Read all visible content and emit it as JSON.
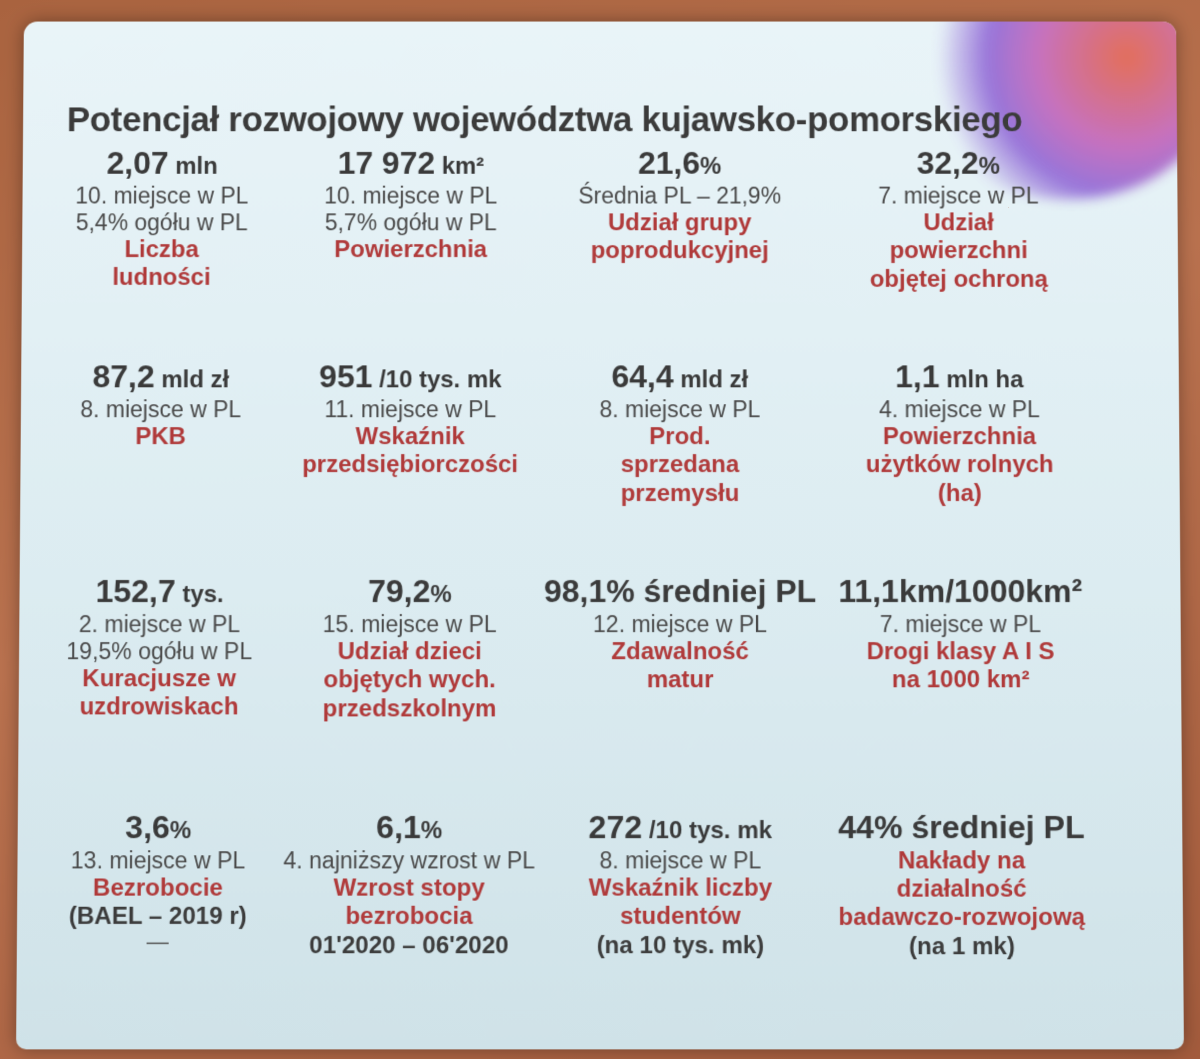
{
  "title": "Potencjał rozwojowy województwa kujawsko-pomorskiego",
  "cells": [
    {
      "value": "2,07",
      "unit": "mln",
      "lines": [
        "10. miejsce w PL",
        "5,4% ogółu w PL"
      ],
      "label": [
        "Liczba",
        "ludności"
      ]
    },
    {
      "value": "17 972",
      "unit": "km²",
      "lines": [
        "10. miejsce w PL",
        "5,7% ogółu w PL"
      ],
      "label": [
        "Powierzchnia"
      ]
    },
    {
      "value": "21,6",
      "unit": "%",
      "lines": [
        "Średnia PL – 21,9%"
      ],
      "label": [
        "Udział grupy",
        "poprodukcyjnej"
      ]
    },
    {
      "value": "32,2",
      "unit": "%",
      "lines": [
        "7. miejsce w PL"
      ],
      "label": [
        "Udział",
        "powierzchni",
        "objętej ochroną"
      ]
    },
    {
      "value": "87,2",
      "unit": "mld zł",
      "lines": [
        "8. miejsce w PL"
      ],
      "label": [
        "PKB"
      ]
    },
    {
      "value": "951",
      "unit": "/10 tys. mk",
      "lines": [
        "11. miejsce w PL"
      ],
      "label": [
        "Wskaźnik",
        "przedsiębiorczości"
      ]
    },
    {
      "value": "64,4",
      "unit": "mld zł",
      "lines": [
        "8. miejsce w PL"
      ],
      "label": [
        "Prod.",
        "sprzedana",
        "przemysłu"
      ]
    },
    {
      "value": "1,1",
      "unit": "mln ha",
      "lines": [
        "4. miejsce w PL"
      ],
      "label": [
        "Powierzchnia",
        "użytków rolnych",
        "(ha)"
      ]
    },
    {
      "value": "152,7",
      "unit": "tys.",
      "lines": [
        "2. miejsce w PL",
        "19,5% ogółu w PL"
      ],
      "label": [
        "Kuracjusze w",
        "uzdrowiskach"
      ]
    },
    {
      "value": "79,2",
      "unit": "%",
      "lines": [
        "15. miejsce w PL"
      ],
      "label": [
        "Udział dzieci",
        "objętych wych.",
        "przedszkolnym"
      ]
    },
    {
      "value": "98,1% średniej PL",
      "unit": "",
      "lines": [
        "12. miejsce w PL"
      ],
      "label": [
        "Zdawalność",
        "matur"
      ]
    },
    {
      "value": "11,1km/1000km²",
      "unit": "",
      "lines": [
        "7. miejsce w PL"
      ],
      "label": [
        "Drogi klasy A I S",
        "na 1000 km²"
      ]
    },
    {
      "value": "3,6",
      "unit": "%",
      "lines": [
        "13. miejsce w PL"
      ],
      "label": [
        "Bezrobocie"
      ],
      "extra": [
        "(BAEL – 2019 r)"
      ]
    },
    {
      "value": "6,1",
      "unit": "%",
      "lines": [
        "4. najniższy wzrost w PL"
      ],
      "label": [
        "Wzrost stopy"
      ],
      "extra": [
        "bezrobocia",
        "01'2020 – 06'2020"
      ]
    },
    {
      "value": "272",
      "unit": "/10 tys. mk",
      "lines": [
        "8. miejsce w PL"
      ],
      "label": [
        "Wskaźnik liczby"
      ],
      "extra": [
        "studentów",
        "(na 10 tys. mk)"
      ]
    },
    {
      "value": "44% średniej PL",
      "unit": "",
      "lines": [],
      "label": [
        "Nakłady na",
        "działalność"
      ],
      "extra": [
        "badawczo-rozwojową",
        "(na 1 mk)"
      ]
    }
  ]
}
